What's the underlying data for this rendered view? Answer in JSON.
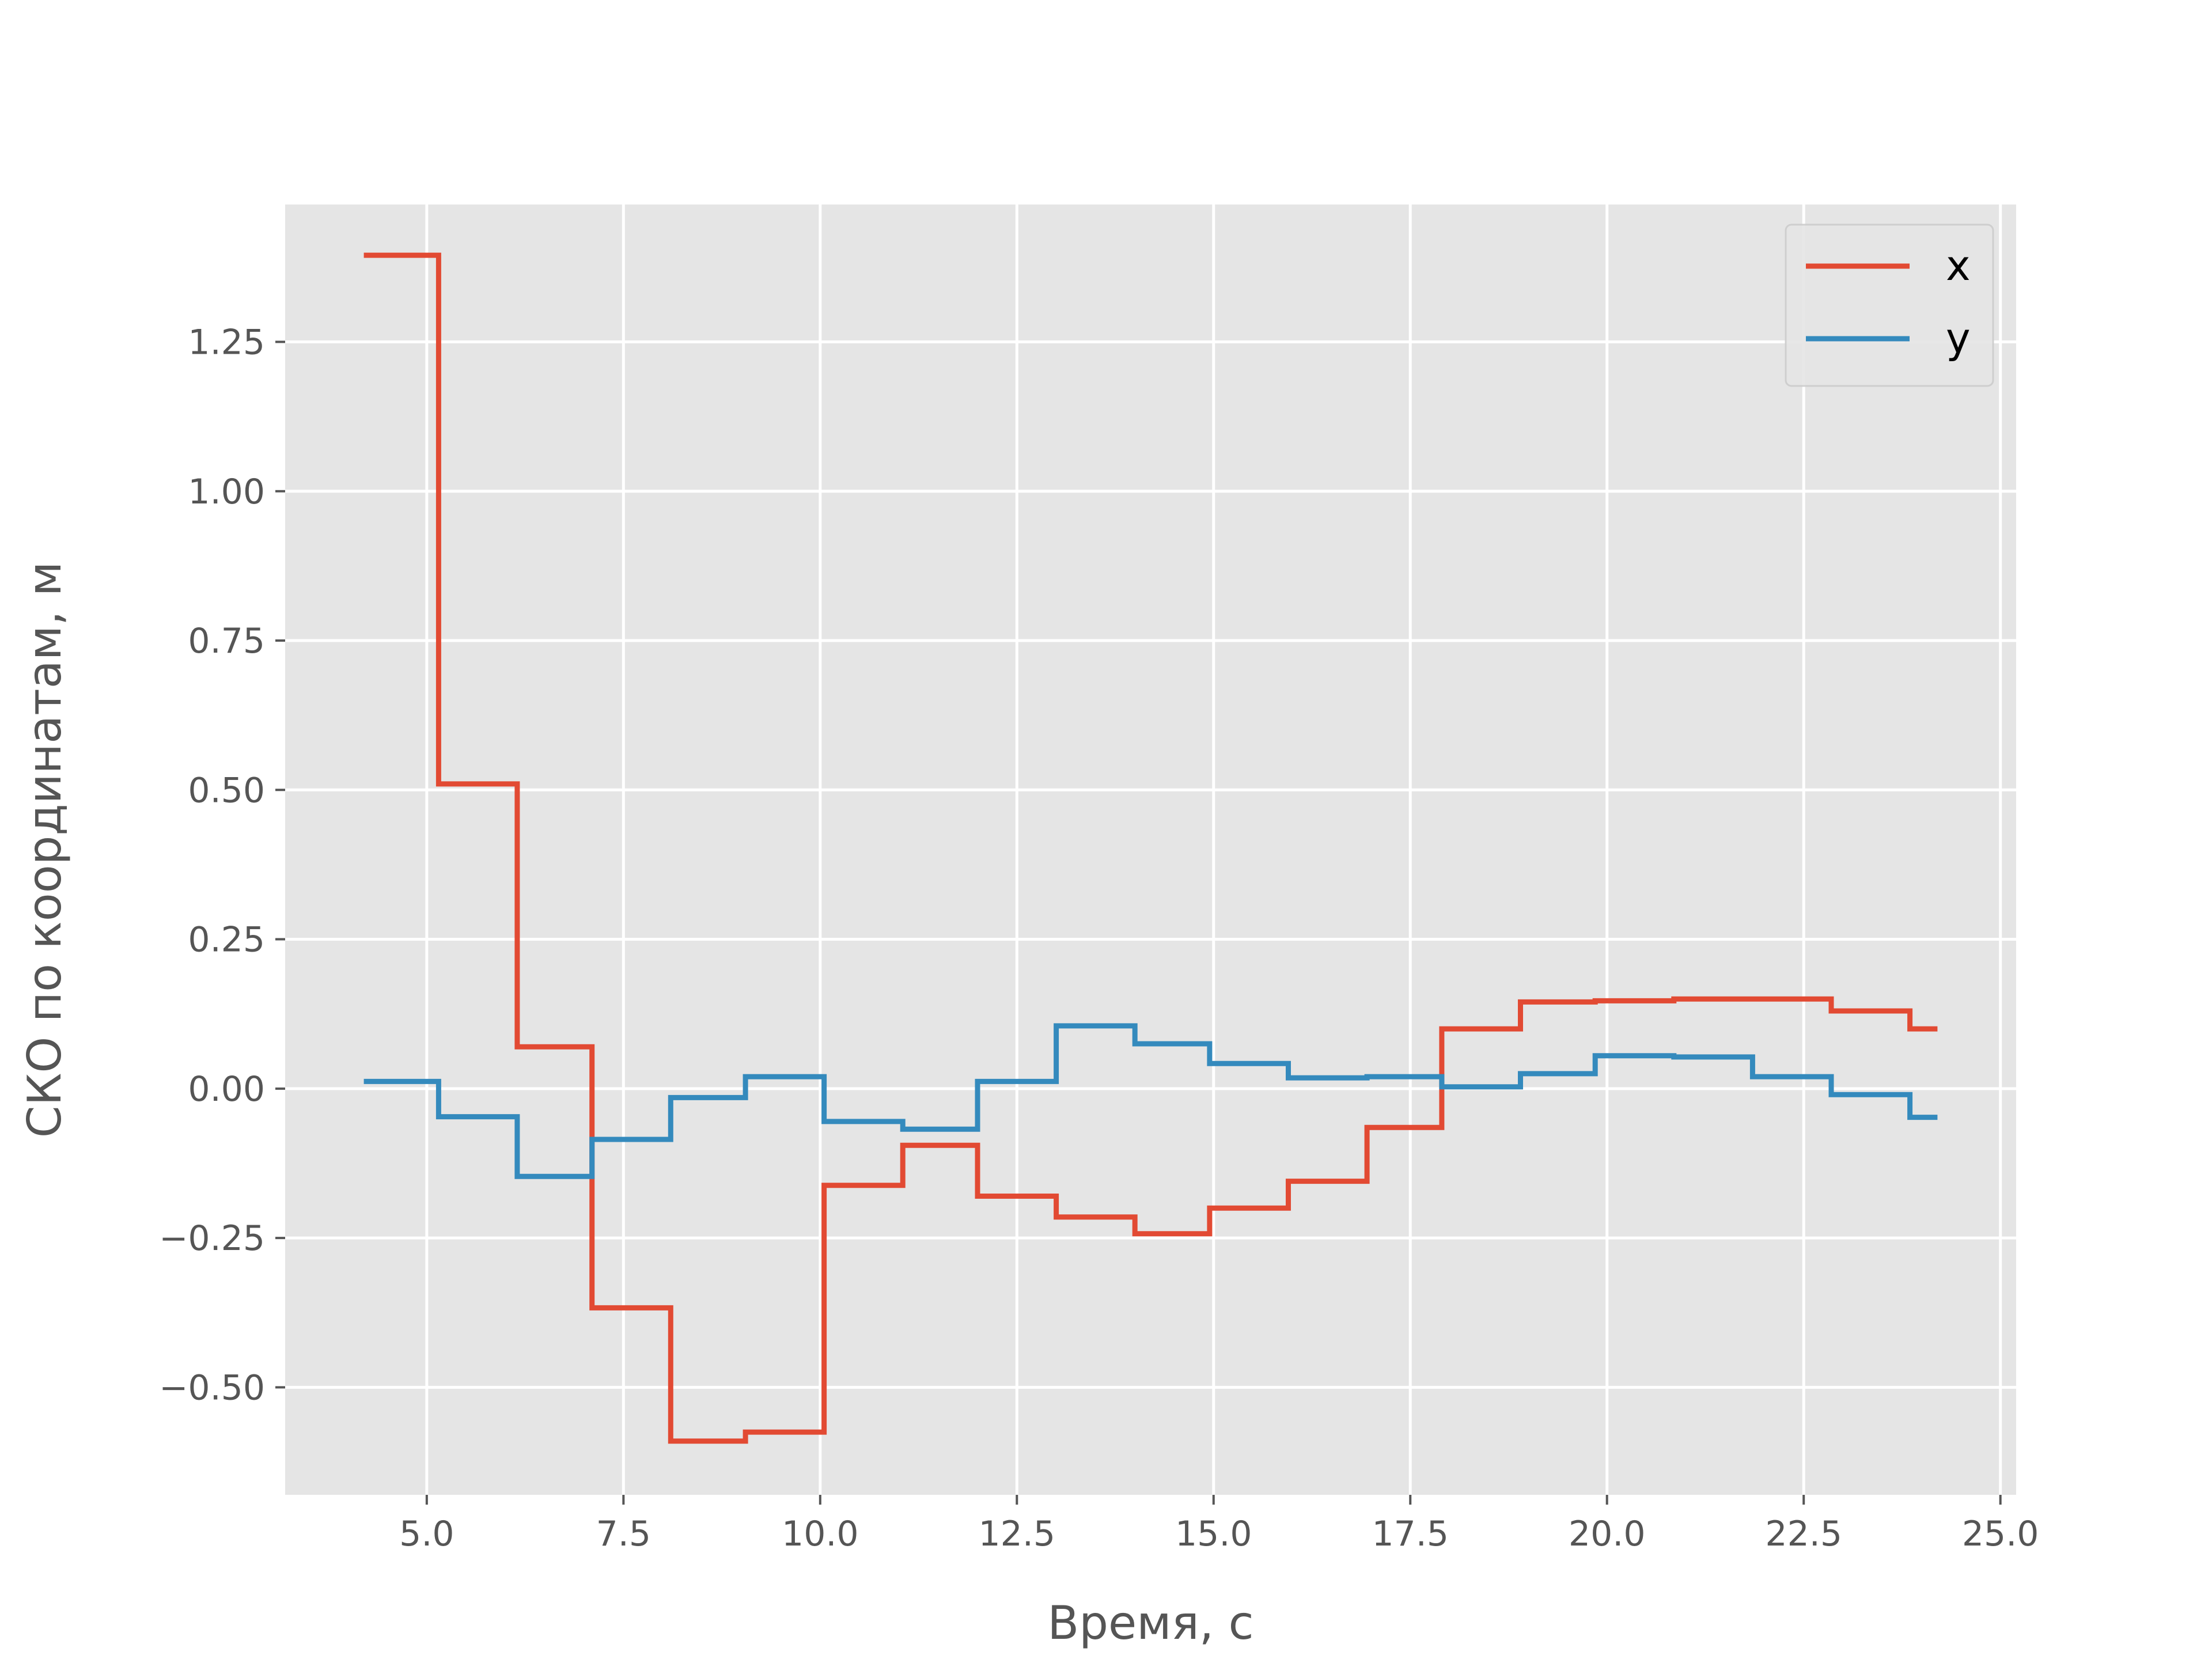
{
  "chart_data": {
    "type": "line",
    "step": "post",
    "xlabel": "Время, с",
    "ylabel": "СКО по координатам, м",
    "xlim": [
      3.2,
      25.2
    ],
    "ylim": [
      -0.68,
      1.48
    ],
    "xticks": [
      5.0,
      7.5,
      10.0,
      12.5,
      15.0,
      17.5,
      20.0,
      22.5,
      25.0
    ],
    "xtick_labels": [
      "5.0",
      "7.5",
      "10.0",
      "12.5",
      "15.0",
      "17.5",
      "20.0",
      "22.5",
      "25.0"
    ],
    "yticks": [
      -0.5,
      -0.25,
      0.0,
      0.25,
      0.5,
      0.75,
      1.0,
      1.25
    ],
    "ytick_labels": [
      "−0.50",
      "−0.25",
      "0.00",
      "0.25",
      "0.50",
      "0.75",
      "1.00",
      "1.25"
    ],
    "grid": true,
    "background": "#e5e5e5",
    "grid_color": "#ffffff",
    "legend_position": "top-right",
    "series": [
      {
        "name": "x",
        "color": "#e24a33",
        "points": [
          [
            4.2,
            1.395
          ],
          [
            5.15,
            1.395
          ],
          [
            5.15,
            0.51
          ],
          [
            6.15,
            0.51
          ],
          [
            6.15,
            0.07
          ],
          [
            7.1,
            0.07
          ],
          [
            7.1,
            -0.367
          ],
          [
            8.1,
            -0.367
          ],
          [
            8.1,
            -0.59
          ],
          [
            9.05,
            -0.59
          ],
          [
            9.05,
            -0.575
          ],
          [
            10.05,
            -0.575
          ],
          [
            10.05,
            -0.162
          ],
          [
            11.05,
            -0.162
          ],
          [
            11.05,
            -0.095
          ],
          [
            12.0,
            -0.095
          ],
          [
            12.0,
            -0.18
          ],
          [
            13.0,
            -0.18
          ],
          [
            13.0,
            -0.215
          ],
          [
            14.0,
            -0.215
          ],
          [
            14.0,
            -0.243
          ],
          [
            14.95,
            -0.243
          ],
          [
            14.95,
            -0.2
          ],
          [
            15.95,
            -0.2
          ],
          [
            15.95,
            -0.155
          ],
          [
            16.95,
            -0.155
          ],
          [
            16.95,
            -0.065
          ],
          [
            17.9,
            -0.065
          ],
          [
            17.9,
            0.1
          ],
          [
            18.9,
            0.1
          ],
          [
            18.9,
            0.145
          ],
          [
            19.85,
            0.145
          ],
          [
            19.85,
            0.147
          ],
          [
            20.85,
            0.147
          ],
          [
            20.85,
            0.15
          ],
          [
            22.85,
            0.15
          ],
          [
            22.85,
            0.13
          ],
          [
            23.85,
            0.13
          ],
          [
            23.85,
            0.1
          ],
          [
            24.2,
            0.1
          ]
        ]
      },
      {
        "name": "y",
        "color": "#348abd",
        "points": [
          [
            4.2,
            0.012
          ],
          [
            5.15,
            0.012
          ],
          [
            5.15,
            -0.047
          ],
          [
            6.15,
            -0.047
          ],
          [
            6.15,
            -0.147
          ],
          [
            7.1,
            -0.147
          ],
          [
            7.1,
            -0.085
          ],
          [
            8.1,
            -0.085
          ],
          [
            8.1,
            -0.015
          ],
          [
            9.05,
            -0.015
          ],
          [
            9.05,
            0.02
          ],
          [
            10.05,
            0.02
          ],
          [
            10.05,
            -0.055
          ],
          [
            11.05,
            -0.055
          ],
          [
            11.05,
            -0.068
          ],
          [
            12.0,
            -0.068
          ],
          [
            12.0,
            0.012
          ],
          [
            13.0,
            0.012
          ],
          [
            13.0,
            0.105
          ],
          [
            14.0,
            0.105
          ],
          [
            14.0,
            0.075
          ],
          [
            14.95,
            0.075
          ],
          [
            14.95,
            0.042
          ],
          [
            15.95,
            0.042
          ],
          [
            15.95,
            0.018
          ],
          [
            16.95,
            0.018
          ],
          [
            16.95,
            0.02
          ],
          [
            17.9,
            0.02
          ],
          [
            17.9,
            0.003
          ],
          [
            18.9,
            0.003
          ],
          [
            18.9,
            0.025
          ],
          [
            19.85,
            0.025
          ],
          [
            19.85,
            0.055
          ],
          [
            20.85,
            0.055
          ],
          [
            20.85,
            0.053
          ],
          [
            21.85,
            0.053
          ],
          [
            21.85,
            0.02
          ],
          [
            22.85,
            0.02
          ],
          [
            22.85,
            -0.01
          ],
          [
            23.85,
            -0.01
          ],
          [
            23.85,
            -0.048
          ],
          [
            24.2,
            -0.048
          ]
        ]
      }
    ]
  }
}
